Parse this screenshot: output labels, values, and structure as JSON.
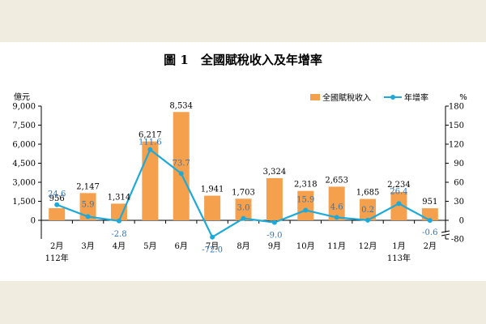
{
  "chart_data": {
    "type": "bar",
    "title": "圖 1　全國賦稅收入及年增率",
    "categories": [
      "2月",
      "3月",
      "4月",
      "5月",
      "6月",
      "7月",
      "8月",
      "9月",
      "10月",
      "11月",
      "12月",
      "1月",
      "2月"
    ],
    "category_sublabels": [
      "112年",
      "",
      "",
      "",
      "",
      "",
      "",
      "",
      "",
      "",
      "",
      "113年",
      ""
    ],
    "left_axis": {
      "unit": "億元",
      "ylim": [
        0,
        9000
      ],
      "ticks": [
        "0",
        "1,500",
        "3,000",
        "4,500",
        "6,000",
        "7,500",
        "9,000"
      ]
    },
    "right_axis": {
      "unit": "%",
      "ylim": [
        -80,
        180
      ],
      "ticks": [
        "-80",
        "0",
        "30",
        "60",
        "90",
        "120",
        "150",
        "180"
      ]
    },
    "legend_position": "top-right",
    "grid": false,
    "series": [
      {
        "name": "全國賦稅收入",
        "type": "bar",
        "axis": "left",
        "color": "#f5a04d",
        "values": [
          956,
          2147,
          1314,
          6217,
          8534,
          1941,
          1703,
          3324,
          2318,
          2653,
          1685,
          2234,
          951
        ],
        "labels": [
          "956",
          "2,147",
          "1,314",
          "6,217",
          "8,534",
          "1,941",
          "1,703",
          "3,324",
          "2,318",
          "2,653",
          "1,685",
          "2,234",
          "951"
        ]
      },
      {
        "name": "年增率",
        "type": "line",
        "axis": "right",
        "color": "#1eaad9",
        "label_color": "#2e75b6",
        "values": [
          24.6,
          5.9,
          -2.8,
          111.6,
          73.7,
          -72.0,
          3.0,
          -9.0,
          15.9,
          4.6,
          0.2,
          26.4,
          -0.6
        ],
        "labels": [
          "24.6",
          "5.9",
          "-2.8",
          "111.6",
          "73.7",
          "-72.0",
          "3.0",
          "-9.0",
          "15.9",
          "4.6",
          "0.2",
          "26.4",
          "-0.6"
        ]
      }
    ]
  }
}
